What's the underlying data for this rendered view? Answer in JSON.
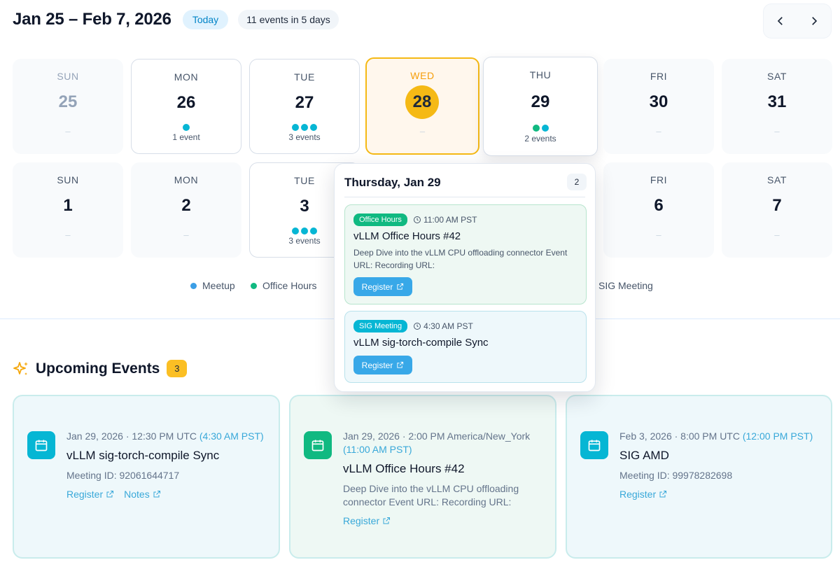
{
  "header": {
    "range": "Jan 25 – Feb 7, 2026",
    "today_label": "Today",
    "summary": "11 events in 5 days"
  },
  "nav": {
    "prev_icon": "chevron-left-icon",
    "next_icon": "chevron-right-icon"
  },
  "week1": [
    {
      "dow": "SUN",
      "num": "25",
      "dash": "–"
    },
    {
      "dow": "MON",
      "num": "26",
      "events": "1 event",
      "dot_count": 1
    },
    {
      "dow": "TUE",
      "num": "27",
      "events": "3 events",
      "dot_count": 3
    },
    {
      "dow": "WED",
      "num": "28",
      "dash": "–"
    },
    {
      "dow": "THU",
      "num": "29",
      "events": "2 events",
      "dot_count": 2
    },
    {
      "dow": "FRI",
      "num": "30",
      "dash": "–"
    },
    {
      "dow": "SAT",
      "num": "31",
      "dash": "–"
    }
  ],
  "week2": [
    {
      "dow": "SUN",
      "num": "1",
      "dash": "–"
    },
    {
      "dow": "MON",
      "num": "2",
      "dash": "–"
    },
    {
      "dow": "TUE",
      "num": "3",
      "events": "3 events",
      "dot_count": 3
    },
    {
      "dow": "FRI",
      "num": "6",
      "dash": "–"
    },
    {
      "dow": "SAT",
      "num": "7",
      "dash": "–"
    }
  ],
  "legend": [
    {
      "label": "Meetup",
      "color": "#3b9ee6"
    },
    {
      "label": "Office Hours",
      "color": "#10b981"
    },
    {
      "label": "SIG Meeting",
      "color": "#06b6d4"
    }
  ],
  "popover": {
    "title": "Thursday, Jan 29",
    "count": "2",
    "events": [
      {
        "tag": "Office Hours",
        "time": "11:00 AM PST",
        "title": "vLLM Office Hours #42",
        "desc": "Deep Dive into the vLLM CPU offloading connector Event URL: Recording URL:",
        "button": "Register"
      },
      {
        "tag": "SIG Meeting",
        "time": "4:30 AM PST",
        "title": "vLLM sig-torch-compile Sync",
        "button": "Register"
      }
    ]
  },
  "upcoming": {
    "title": "Upcoming Events",
    "count": "3",
    "cards": [
      {
        "date": "Jan 29, 2026 · 12:30 PM UTC",
        "local": "(4:30 AM PST)",
        "title": "vLLM sig-torch-compile Sync",
        "desc": "Meeting ID: 92061644717",
        "links": [
          "Register",
          "Notes"
        ]
      },
      {
        "date": "Jan 29, 2026 · 2:00 PM America/New_York",
        "local": "(11:00 AM PST)",
        "title": "vLLM Office Hours #42",
        "desc": "Deep Dive into the vLLM CPU offloading connector Event URL: Recording URL:",
        "links": [
          "Register"
        ]
      },
      {
        "date": "Feb 3, 2026 · 8:00 PM UTC",
        "local": "(12:00 PM PST)",
        "title": "SIG AMD",
        "desc": "Meeting ID: 99978282698",
        "links": [
          "Register"
        ]
      }
    ]
  }
}
